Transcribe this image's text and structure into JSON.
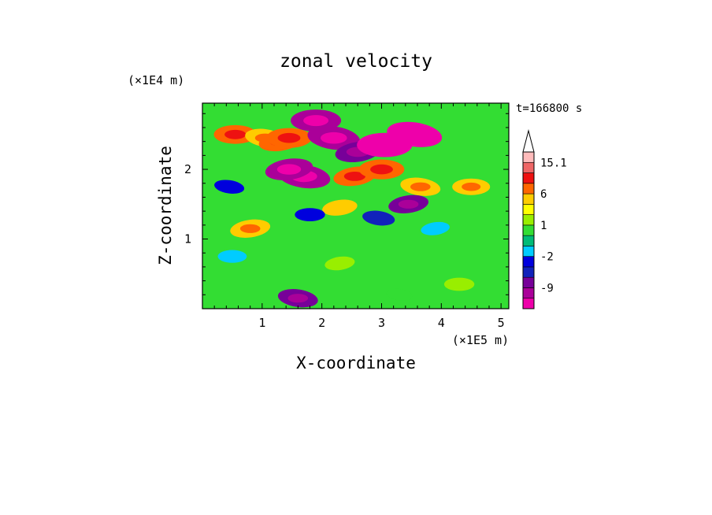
{
  "chart_data": {
    "type": "heatmap",
    "title": "zonal velocity",
    "xlabel": "X-coordinate",
    "ylabel": "Z-coordinate",
    "x_unit": "(×1E5 m)",
    "y_unit": "(×1E4 m)",
    "time_label": "t=166800 s",
    "xlim": [
      0,
      5.13
    ],
    "ylim": [
      0,
      2.95
    ],
    "x_ticks": [
      1,
      2,
      3,
      4,
      5
    ],
    "y_ticks": [
      1,
      2
    ],
    "x_tick_labels": [
      "1",
      "2",
      "3",
      "4",
      "5"
    ],
    "y_tick_labels": [
      "1",
      "2"
    ],
    "colorbar": {
      "levels": [
        -15,
        -12,
        -9,
        -6,
        -3,
        -2,
        -1,
        0,
        1,
        2,
        3,
        6,
        9,
        12,
        15.1
      ],
      "colors": [
        "#ee00aa",
        "#aa0099",
        "#770099",
        "#1122bb",
        "#0000dd",
        "#00ccff",
        "#00bb77",
        "#33dd33",
        "#99ee00",
        "#ffff00",
        "#ffcc00",
        "#ff6600",
        "#ee1111",
        "#ee6666",
        "#ffbbbb"
      ],
      "tick_labels": [
        {
          "value": 15.1,
          "label": "15.1"
        },
        {
          "value": 6,
          "label": "6"
        },
        {
          "value": 1,
          "label": "1"
        },
        {
          "value": -2,
          "label": "-2"
        },
        {
          "value": -9,
          "label": "-9"
        }
      ],
      "extend": "max"
    },
    "features": [
      {
        "x": 0.8,
        "z": 1.15,
        "u": 6
      },
      {
        "x": 0.55,
        "z": 2.5,
        "u": 7
      },
      {
        "x": 1.05,
        "z": 2.45,
        "u": 6
      },
      {
        "x": 1.3,
        "z": 2.4,
        "u": 7
      },
      {
        "x": 1.45,
        "z": 2.45,
        "u": 8
      },
      {
        "x": 1.7,
        "z": 1.9,
        "u": -11
      },
      {
        "x": 1.45,
        "z": 2.0,
        "u": -9
      },
      {
        "x": 1.9,
        "z": 2.7,
        "u": -10
      },
      {
        "x": 2.2,
        "z": 2.45,
        "u": -11
      },
      {
        "x": 2.6,
        "z": 2.25,
        "u": -8
      },
      {
        "x": 3.05,
        "z": 2.35,
        "u": -12
      },
      {
        "x": 3.55,
        "z": 2.5,
        "u": -12
      },
      {
        "x": 2.55,
        "z": 1.9,
        "u": 7
      },
      {
        "x": 3.0,
        "z": 2.0,
        "u": 8
      },
      {
        "x": 3.65,
        "z": 1.75,
        "u": 6
      },
      {
        "x": 3.45,
        "z": 1.5,
        "u": -6
      },
      {
        "x": 4.5,
        "z": 1.75,
        "u": 5
      },
      {
        "x": 2.95,
        "z": 1.3,
        "u": -3
      },
      {
        "x": 2.3,
        "z": 1.45,
        "u": 4
      },
      {
        "x": 1.8,
        "z": 1.35,
        "u": -2
      },
      {
        "x": 0.45,
        "z": 1.75,
        "u": -2
      },
      {
        "x": 3.9,
        "z": 1.15,
        "u": -1.5
      },
      {
        "x": 0.5,
        "z": 0.75,
        "u": -1.5
      },
      {
        "x": 1.6,
        "z": 0.15,
        "u": -6
      },
      {
        "x": 2.3,
        "z": 0.65,
        "u": 2
      },
      {
        "x": 4.3,
        "z": 0.35,
        "u": 2
      },
      {
        "x": 3.3,
        "z": 0.2,
        "u": 0.5
      }
    ]
  }
}
